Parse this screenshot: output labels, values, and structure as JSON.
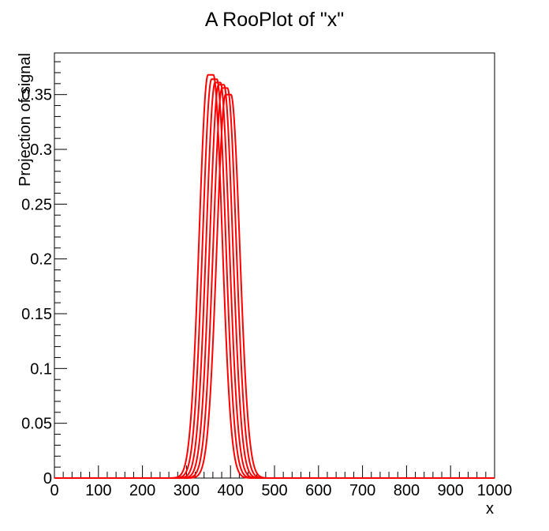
{
  "chart_data": {
    "type": "line",
    "title": "A RooPlot of \"x\"",
    "xlabel": "x",
    "ylabel": "Projection of signal",
    "xlim": [
      0,
      1000
    ],
    "ylim": [
      0,
      0.388
    ],
    "x_ticks": [
      0,
      100,
      200,
      300,
      400,
      500,
      600,
      700,
      800,
      900,
      1000
    ],
    "x_tick_labels": [
      "0",
      "100",
      "200",
      "300",
      "400",
      "500",
      "600",
      "700",
      "800",
      "900",
      "1000"
    ],
    "y_ticks": [
      0,
      0.05,
      0.1,
      0.15,
      0.2,
      0.25,
      0.3,
      0.35
    ],
    "y_tick_labels": [
      "0",
      "0.05",
      "0.1",
      "0.15",
      "0.2",
      "0.25",
      "0.3",
      "0.35"
    ],
    "grid": false,
    "line_color": "#ff0000",
    "curve_shape": "flat-top peak with gaussian tails",
    "series": [
      {
        "center": 355,
        "halfwidth": 6,
        "sigma": 20,
        "peak": 0.368
      },
      {
        "center": 363,
        "halfwidth": 6,
        "sigma": 20,
        "peak": 0.364
      },
      {
        "center": 371,
        "halfwidth": 6,
        "sigma": 20,
        "peak": 0.361
      },
      {
        "center": 379,
        "halfwidth": 6,
        "sigma": 20,
        "peak": 0.359
      },
      {
        "center": 387,
        "halfwidth": 6,
        "sigma": 20,
        "peak": 0.356
      },
      {
        "center": 395,
        "halfwidth": 6,
        "sigma": 20,
        "peak": 0.35
      }
    ]
  }
}
